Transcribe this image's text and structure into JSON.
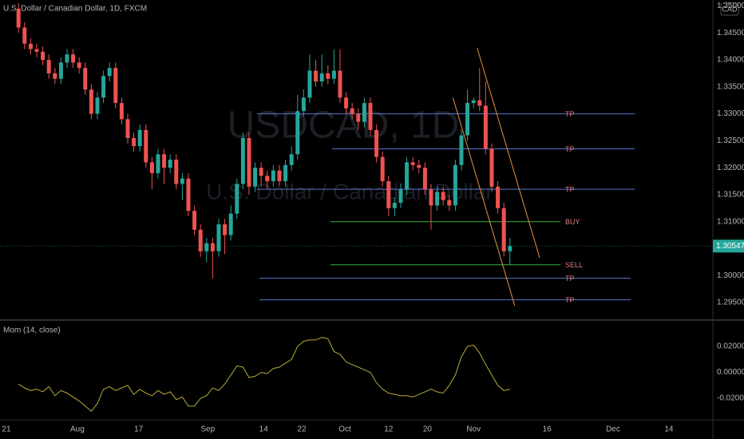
{
  "header": {
    "symbol_title": "U.S. Dollar / Canadian Dollar, 1D, FXCM",
    "currency": "CAD",
    "watermark_symbol": "USDCAD, 1D",
    "watermark_name": "U.S. Dollar / Canadian Dollar"
  },
  "chart_data": [
    {
      "type": "candlestick",
      "up_color": "#26a69a",
      "down_color": "#ef5350",
      "x": [
        2,
        3,
        4,
        5,
        6,
        7,
        8,
        9,
        10,
        11,
        12,
        13,
        14,
        15,
        16,
        17,
        18,
        19,
        20,
        21,
        22,
        23,
        24,
        25,
        26,
        27,
        28,
        29,
        30,
        31,
        32,
        33,
        34,
        35,
        36,
        37,
        38,
        39,
        40,
        41,
        42,
        43,
        44,
        45,
        46,
        47,
        48,
        49,
        50,
        51,
        52,
        53,
        54,
        55,
        56,
        57,
        58,
        59,
        60,
        61,
        62,
        63,
        64,
        65,
        66,
        67,
        68,
        69,
        70,
        71,
        72,
        73,
        74,
        75,
        76,
        77,
        78,
        79,
        80,
        81,
        82,
        83
      ],
      "open": [
        1.3495,
        1.346,
        1.343,
        1.342,
        1.3415,
        1.34,
        1.3375,
        1.3365,
        1.3395,
        1.341,
        1.3395,
        1.3385,
        1.3345,
        1.33,
        1.333,
        1.337,
        1.3385,
        1.332,
        1.329,
        1.3255,
        1.324,
        1.327,
        1.321,
        1.319,
        1.3225,
        1.32,
        1.3215,
        1.317,
        1.318,
        1.312,
        1.3085,
        1.3045,
        1.306,
        1.3045,
        1.3095,
        1.3075,
        1.3115,
        1.317,
        1.3255,
        1.3165,
        1.32,
        1.3185,
        1.3175,
        1.3195,
        1.3175,
        1.3205,
        1.3225,
        1.3305,
        1.333,
        1.338,
        1.336,
        1.3375,
        1.3365,
        1.338,
        1.333,
        1.331,
        1.33,
        1.3285,
        1.332,
        1.327,
        1.322,
        1.3175,
        1.3125,
        1.3135,
        1.316,
        1.321,
        1.3205,
        1.32,
        1.316,
        1.313,
        1.3155,
        1.314,
        1.313,
        1.3205,
        1.326,
        1.332,
        1.3325,
        1.3315,
        1.3235,
        1.3165,
        1.3125,
        1.3045
      ],
      "high": [
        1.3505,
        1.347,
        1.344,
        1.343,
        1.3425,
        1.341,
        1.3385,
        1.3405,
        1.342,
        1.342,
        1.3405,
        1.3395,
        1.3355,
        1.334,
        1.338,
        1.3395,
        1.3395,
        1.333,
        1.33,
        1.3265,
        1.328,
        1.328,
        1.322,
        1.3235,
        1.3235,
        1.3225,
        1.3225,
        1.319,
        1.319,
        1.313,
        1.3095,
        1.307,
        1.307,
        1.3105,
        1.3105,
        1.313,
        1.318,
        1.3265,
        1.3265,
        1.321,
        1.321,
        1.3195,
        1.3205,
        1.3205,
        1.3215,
        1.324,
        1.3335,
        1.3345,
        1.341,
        1.34,
        1.341,
        1.339,
        1.342,
        1.342,
        1.334,
        1.332,
        1.331,
        1.333,
        1.333,
        1.328,
        1.323,
        1.3185,
        1.3145,
        1.317,
        1.322,
        1.322,
        1.3215,
        1.321,
        1.317,
        1.3165,
        1.3165,
        1.315,
        1.3215,
        1.327,
        1.3345,
        1.333,
        1.3385,
        1.336,
        1.3245,
        1.3175,
        1.3135,
        1.307
      ],
      "low": [
        1.345,
        1.342,
        1.341,
        1.3405,
        1.339,
        1.3365,
        1.3355,
        1.3355,
        1.3385,
        1.3385,
        1.3375,
        1.3335,
        1.329,
        1.329,
        1.332,
        1.336,
        1.331,
        1.328,
        1.3245,
        1.323,
        1.323,
        1.32,
        1.316,
        1.318,
        1.317,
        1.319,
        1.316,
        1.314,
        1.311,
        1.3075,
        1.3035,
        1.3025,
        1.2995,
        1.3035,
        1.304,
        1.3065,
        1.3105,
        1.316,
        1.315,
        1.3155,
        1.3165,
        1.316,
        1.3165,
        1.3165,
        1.3165,
        1.3195,
        1.3215,
        1.3295,
        1.332,
        1.335,
        1.335,
        1.3355,
        1.3355,
        1.332,
        1.33,
        1.329,
        1.327,
        1.3275,
        1.326,
        1.321,
        1.3165,
        1.311,
        1.311,
        1.3125,
        1.315,
        1.3195,
        1.319,
        1.315,
        1.3085,
        1.312,
        1.313,
        1.312,
        1.312,
        1.3195,
        1.325,
        1.331,
        1.3305,
        1.3225,
        1.3155,
        1.3115,
        1.3035,
        1.302
      ],
      "close": [
        1.346,
        1.343,
        1.342,
        1.3415,
        1.34,
        1.3375,
        1.3365,
        1.3395,
        1.341,
        1.3395,
        1.3385,
        1.3345,
        1.33,
        1.333,
        1.337,
        1.3385,
        1.332,
        1.329,
        1.3255,
        1.324,
        1.327,
        1.321,
        1.319,
        1.3225,
        1.32,
        1.3215,
        1.317,
        1.318,
        1.312,
        1.3085,
        1.3045,
        1.306,
        1.3045,
        1.3095,
        1.3075,
        1.3115,
        1.317,
        1.3255,
        1.3165,
        1.32,
        1.3185,
        1.3175,
        1.3195,
        1.3175,
        1.3205,
        1.3225,
        1.3305,
        1.333,
        1.338,
        1.336,
        1.3375,
        1.3365,
        1.338,
        1.333,
        1.331,
        1.33,
        1.3285,
        1.332,
        1.327,
        1.322,
        1.3175,
        1.3125,
        1.3135,
        1.316,
        1.321,
        1.3205,
        1.32,
        1.316,
        1.313,
        1.3155,
        1.314,
        1.313,
        1.3205,
        1.326,
        1.332,
        1.3325,
        1.3315,
        1.3235,
        1.3165,
        1.3125,
        1.3045,
        1.3055
      ],
      "xlim": [
        -1.05,
        116.45
      ],
      "xticks": [
        {
          "value": 0,
          "label": "21"
        },
        {
          "value": 11.7,
          "label": "Aug"
        },
        {
          "value": 21.8,
          "label": "17"
        },
        {
          "value": 33.2,
          "label": "Sep"
        },
        {
          "value": 42.4,
          "label": "14"
        },
        {
          "value": 48.7,
          "label": "22"
        },
        {
          "value": 55.8,
          "label": "Oct"
        },
        {
          "value": 63.0,
          "label": "12"
        },
        {
          "value": 69.4,
          "label": "20"
        },
        {
          "value": 77.0,
          "label": "Nov"
        },
        {
          "value": 89.1,
          "label": "16"
        },
        {
          "value": 100.0,
          "label": "Dec"
        },
        {
          "value": 109.2,
          "label": "14"
        }
      ],
      "ylim": [
        1.2919,
        1.3511
      ],
      "yticks": [
        {
          "value": 1.35,
          "label": "1.35000"
        },
        {
          "value": 1.345,
          "label": "1.34500"
        },
        {
          "value": 1.34,
          "label": "1.34000"
        },
        {
          "value": 1.335,
          "label": "1.33500"
        },
        {
          "value": 1.33,
          "label": "1.33000"
        },
        {
          "value": 1.325,
          "label": "1.32500"
        },
        {
          "value": 1.32,
          "label": "1.32000"
        },
        {
          "value": 1.315,
          "label": "1.31500"
        },
        {
          "value": 1.31,
          "label": "1.31000"
        },
        {
          "value": 1.305,
          "label": "1.30500"
        },
        {
          "value": 1.3,
          "label": "1.30000"
        },
        {
          "value": 1.295,
          "label": "1.29500"
        }
      ],
      "grid": false,
      "last_price": 1.30547,
      "drawings": [
        {
          "label": "TP",
          "price": 1.33,
          "x": [
            41.3,
            103.6
          ],
          "color": "#5a74c8"
        },
        {
          "label": "TP",
          "price": 1.3235,
          "x": [
            53.7,
            103.6
          ],
          "color": "#5a74c8"
        },
        {
          "label": "TP",
          "price": 1.316,
          "x": [
            41.3,
            103.6
          ],
          "color": "#5a74c8"
        },
        {
          "label": "BUY",
          "price": 1.31,
          "x": [
            53.4,
            91.3
          ],
          "color": "#3cb043"
        },
        {
          "label": "SELL",
          "price": 1.302,
          "x": [
            53.4,
            91.3
          ],
          "color": "#3cb043"
        },
        {
          "label": "TP",
          "price": 1.2995,
          "x": [
            41.7,
            102.9
          ],
          "color": "#5a74c8"
        },
        {
          "label": "TP",
          "price": 1.2955,
          "x": [
            41.7,
            102.9
          ],
          "color": "#5a74c8"
        }
      ],
      "trendlines": [
        {
          "x": [
            73.6,
            83.8
          ],
          "y": [
            1.333,
            1.2944
          ],
          "color": "#e8913a"
        },
        {
          "x": [
            77.6,
            87.9
          ],
          "y": [
            1.3422,
            1.3033
          ],
          "color": "#e8913a"
        }
      ]
    },
    {
      "type": "line",
      "title": "Mom (14, close)",
      "color": "#b8aa36",
      "values": [
        -0.009,
        -0.012,
        -0.014,
        -0.013,
        -0.015,
        -0.011,
        -0.018,
        -0.014,
        -0.016,
        -0.019,
        -0.022,
        -0.026,
        -0.03,
        -0.024,
        -0.013,
        -0.011,
        -0.014,
        -0.012,
        -0.01,
        -0.017,
        -0.013,
        -0.016,
        -0.018,
        -0.014,
        -0.017,
        -0.015,
        -0.021,
        -0.019,
        -0.026,
        -0.026,
        -0.02,
        -0.018,
        -0.012,
        -0.014,
        -0.009,
        -0.002,
        0.005,
        0.004,
        -0.004,
        -0.003,
        0.0,
        -0.001,
        0.003,
        0.004,
        0.007,
        0.01,
        0.02,
        0.024,
        0.025,
        0.025,
        0.027,
        0.026,
        0.016,
        0.014,
        0.008,
        0.006,
        0.004,
        0.002,
        0.0,
        -0.008,
        -0.013,
        -0.016,
        -0.017,
        -0.018,
        -0.018,
        -0.019,
        -0.017,
        -0.015,
        -0.013,
        -0.015,
        -0.016,
        -0.01,
        -0.002,
        0.012,
        0.02,
        0.021,
        0.015,
        0.006,
        -0.002,
        -0.01,
        -0.014,
        -0.013
      ],
      "ylim": [
        -0.036,
        0.0391
      ],
      "yticks": [
        {
          "value": 0.02,
          "label": "0.02000"
        },
        {
          "value": 0,
          "label": "0.00000"
        },
        {
          "value": -0.02,
          "label": "-0.02000"
        }
      ]
    }
  ]
}
